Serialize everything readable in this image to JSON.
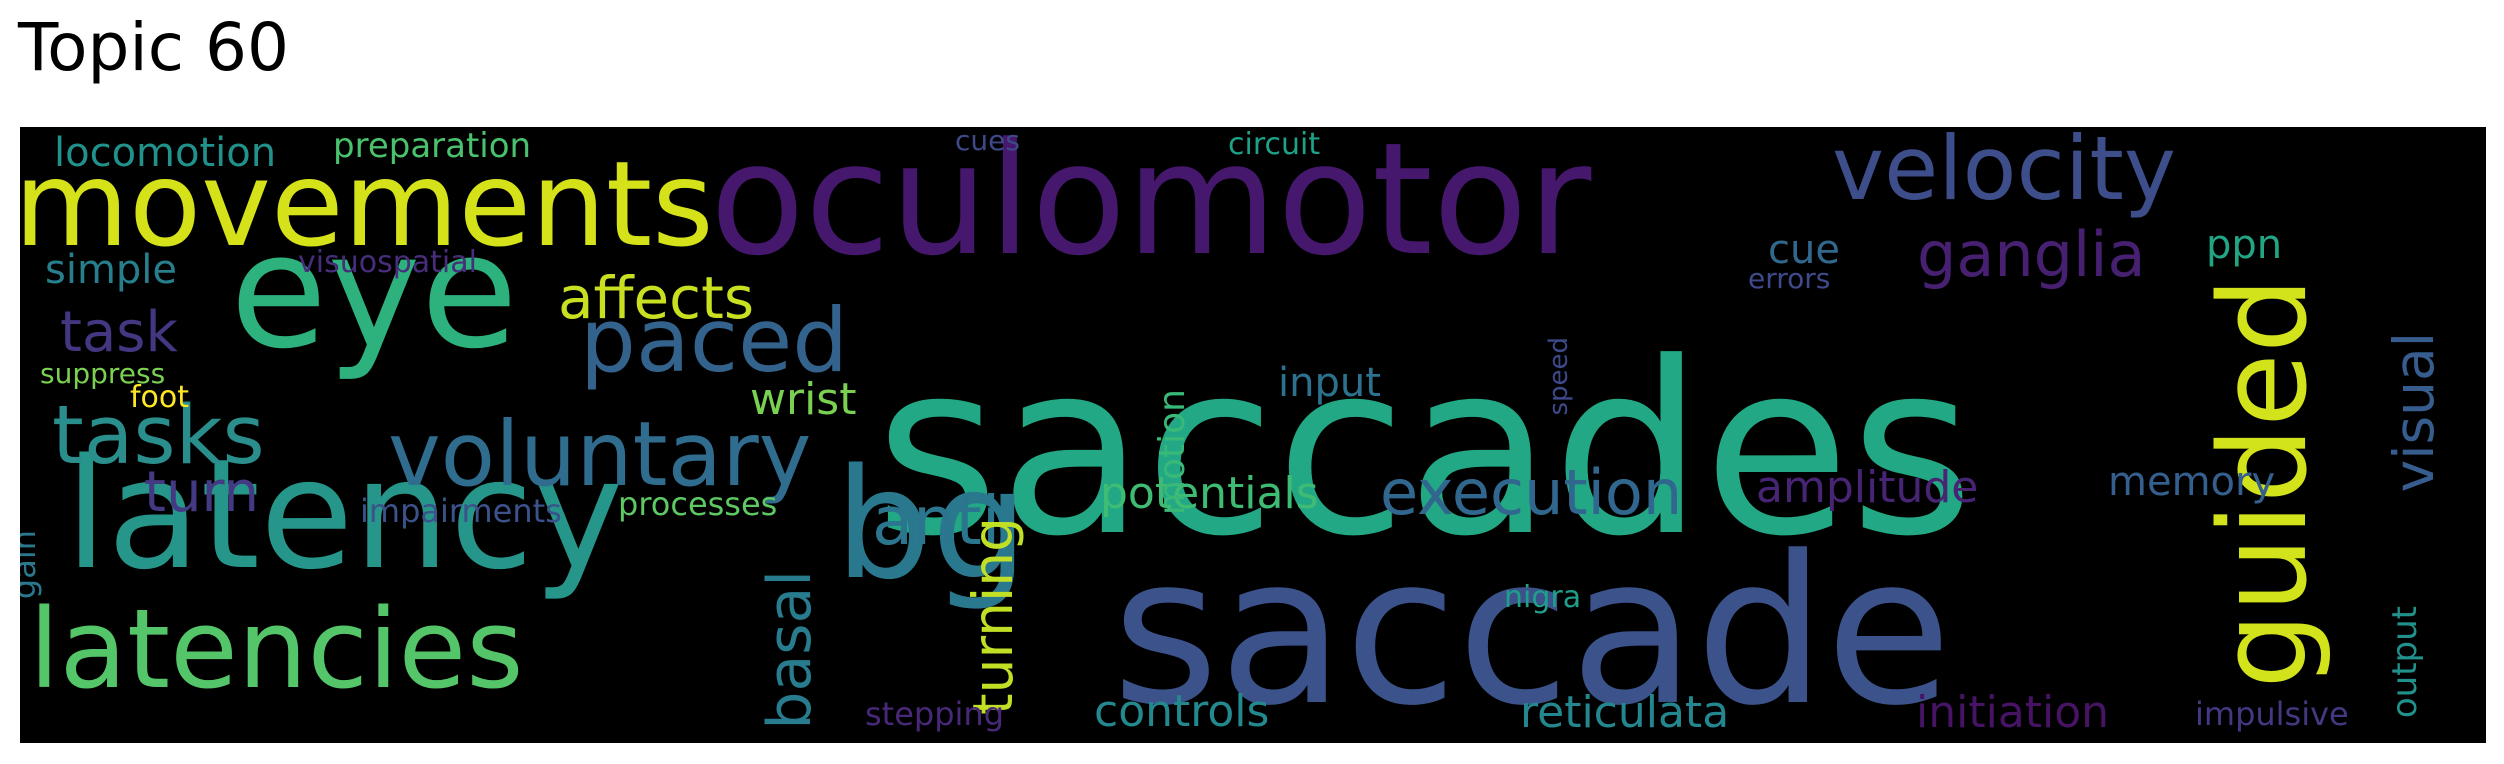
{
  "title": "Topic 60",
  "words": [
    {
      "text": "saccades",
      "color": "#22a884"
    },
    {
      "text": "saccade",
      "color": "#3b528b"
    },
    {
      "text": "oculomotor",
      "color": "#46186d"
    },
    {
      "text": "eye",
      "color": "#2db27d"
    },
    {
      "text": "movements",
      "color": "#d5e21a"
    },
    {
      "text": "latency",
      "color": "#26968b"
    },
    {
      "text": "latencies",
      "color": "#54c568"
    },
    {
      "text": "guided",
      "color": "#d2e21b"
    },
    {
      "text": "bg",
      "color": "#2a788e"
    },
    {
      "text": "velocity",
      "color": "#3d4e8a"
    },
    {
      "text": "voluntary",
      "color": "#2f6c8e"
    },
    {
      "text": "paced",
      "color": "#33638d"
    },
    {
      "text": "tasks",
      "color": "#2a8e8c"
    },
    {
      "text": "ganglia",
      "color": "#482071"
    },
    {
      "text": "anti",
      "color": "#2b758e"
    },
    {
      "text": "execution",
      "color": "#31678e"
    },
    {
      "text": "affects",
      "color": "#c8e020"
    },
    {
      "text": "visual",
      "color": "#365d8d"
    },
    {
      "text": "turning",
      "color": "#c0df25"
    },
    {
      "text": "basal",
      "color": "#287c8e"
    },
    {
      "text": "task",
      "color": "#453681"
    },
    {
      "text": "turn",
      "color": "#443a83"
    },
    {
      "text": "amplitude",
      "color": "#482475"
    },
    {
      "text": "reticulata",
      "color": "#24868e"
    },
    {
      "text": "controls",
      "color": "#23898e"
    },
    {
      "text": "initiation",
      "color": "#471365"
    },
    {
      "text": "memory",
      "color": "#355f8d"
    },
    {
      "text": "potentials",
      "color": "#3fbc73"
    },
    {
      "text": "wrist",
      "color": "#7ad151"
    },
    {
      "text": "input",
      "color": "#2c728e"
    },
    {
      "text": "motion",
      "color": "#38b977"
    },
    {
      "text": "simple",
      "color": "#277f8e"
    },
    {
      "text": "locomotion",
      "color": "#21918c"
    },
    {
      "text": "preparation",
      "color": "#4ac16d"
    },
    {
      "text": "cue",
      "color": "#31688e"
    },
    {
      "text": "ppn",
      "color": "#21a585"
    },
    {
      "text": "output",
      "color": "#21918c"
    },
    {
      "text": "impulsive",
      "color": "#453882"
    },
    {
      "text": "stepping",
      "color": "#482878"
    },
    {
      "text": "impairments",
      "color": "#3b528b"
    },
    {
      "text": "processes",
      "color": "#5ec962"
    },
    {
      "text": "gain",
      "color": "#2a788e"
    },
    {
      "text": "visuospatial",
      "color": "#472d7b"
    },
    {
      "text": "suppress",
      "color": "#7ad151"
    },
    {
      "text": "foot",
      "color": "#fde725"
    },
    {
      "text": "nigra",
      "color": "#1f9e89"
    },
    {
      "text": "circuit",
      "color": "#1fa187"
    },
    {
      "text": "cues",
      "color": "#3e4989"
    },
    {
      "text": "errors",
      "color": "#3e4a89"
    },
    {
      "text": "speed",
      "color": "#3e4989"
    }
  ]
}
